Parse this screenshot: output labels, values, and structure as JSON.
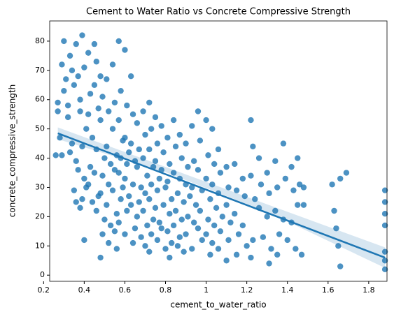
{
  "chart_data": {
    "type": "scatter",
    "title": "Cement to Water Ratio vs Concrete Compressive Strength",
    "x_label": "cement_to_water_ratio",
    "y_label": "concrete_compressive_strength",
    "xlim": [
      0.23,
      1.89
    ],
    "ylim": [
      -2.1,
      86.9
    ],
    "xticks": [
      0.2,
      0.4,
      0.6,
      0.8,
      1.0,
      1.2,
      1.4,
      1.6,
      1.8
    ],
    "yticks": [
      0,
      10,
      20,
      30,
      40,
      50,
      60,
      70,
      80
    ],
    "series": [
      {
        "name": "points",
        "color": "#1f77b4",
        "x": [
          0.27,
          0.28,
          0.26,
          0.27,
          0.3,
          0.29,
          0.31,
          0.3,
          0.32,
          0.29,
          0.33,
          0.34,
          0.32,
          0.33,
          0.34,
          0.35,
          0.36,
          0.37,
          0.35,
          0.38,
          0.36,
          0.37,
          0.36,
          0.38,
          0.39,
          0.4,
          0.38,
          0.41,
          0.39,
          0.4,
          0.41,
          0.39,
          0.4,
          0.42,
          0.43,
          0.42,
          0.44,
          0.43,
          0.42,
          0.44,
          0.45,
          0.46,
          0.45,
          0.47,
          0.46,
          0.45,
          0.47,
          0.46,
          0.48,
          0.49,
          0.48,
          0.5,
          0.49,
          0.48,
          0.5,
          0.49,
          0.48,
          0.51,
          0.52,
          0.51,
          0.53,
          0.52,
          0.51,
          0.53,
          0.52,
          0.54,
          0.55,
          0.54,
          0.56,
          0.55,
          0.54,
          0.56,
          0.55,
          0.57,
          0.58,
          0.57,
          0.59,
          0.58,
          0.57,
          0.59,
          0.58,
          0.57,
          0.56,
          0.6,
          0.61,
          0.6,
          0.62,
          0.61,
          0.6,
          0.62,
          0.61,
          0.6,
          0.63,
          0.64,
          0.63,
          0.65,
          0.64,
          0.63,
          0.65,
          0.64,
          0.66,
          0.67,
          0.66,
          0.68,
          0.67,
          0.66,
          0.68,
          0.69,
          0.7,
          0.69,
          0.71,
          0.7,
          0.69,
          0.71,
          0.7,
          0.72,
          0.73,
          0.72,
          0.74,
          0.73,
          0.72,
          0.74,
          0.73,
          0.72,
          0.75,
          0.76,
          0.75,
          0.77,
          0.76,
          0.75,
          0.77,
          0.76,
          0.78,
          0.79,
          0.78,
          0.8,
          0.79,
          0.78,
          0.8,
          0.81,
          0.82,
          0.81,
          0.83,
          0.82,
          0.81,
          0.83,
          0.82,
          0.84,
          0.85,
          0.84,
          0.86,
          0.85,
          0.84,
          0.86,
          0.87,
          0.88,
          0.87,
          0.89,
          0.88,
          0.87,
          0.89,
          0.9,
          0.91,
          0.9,
          0.92,
          0.91,
          0.9,
          0.93,
          0.94,
          0.93,
          0.95,
          0.94,
          0.93,
          0.96,
          0.97,
          0.96,
          0.98,
          0.97,
          0.96,
          0.98,
          1.0,
          1.01,
          1.0,
          1.02,
          1.01,
          1.0,
          1.02,
          1.03,
          1.04,
          1.03,
          1.05,
          1.04,
          1.03,
          1.06,
          1.07,
          1.06,
          1.08,
          1.07,
          1.06,
          1.1,
          1.11,
          1.1,
          1.12,
          1.11,
          1.1,
          1.14,
          1.15,
          1.14,
          1.16,
          1.15,
          1.18,
          1.19,
          1.18,
          1.2,
          1.22,
          1.23,
          1.22,
          1.24,
          1.23,
          1.22,
          1.26,
          1.27,
          1.26,
          1.28,
          1.3,
          1.31,
          1.3,
          1.32,
          1.31,
          1.34,
          1.35,
          1.34,
          1.36,
          1.35,
          1.38,
          1.39,
          1.38,
          1.4,
          1.42,
          1.43,
          1.42,
          1.44,
          1.45,
          1.46,
          1.45,
          1.47,
          1.48,
          1.48,
          1.62,
          1.63,
          1.64,
          1.66,
          1.65,
          1.66,
          1.69,
          1.88,
          1.88,
          1.88,
          1.88,
          1.88,
          1.88,
          1.88
        ],
        "values": [
          59,
          47,
          41,
          56,
          80,
          72,
          67,
          63,
          54,
          41,
          75,
          70,
          58,
          42,
          45,
          29,
          79,
          68,
          65,
          56,
          39,
          36,
          25,
          23,
          82,
          71,
          60,
          50,
          44,
          33,
          30,
          26,
          12,
          76,
          62,
          55,
          47,
          37,
          31,
          25,
          79,
          73,
          65,
          57,
          43,
          35,
          27,
          22,
          68,
          61,
          53,
          40,
          34,
          28,
          19,
          14,
          6,
          67,
          56,
          44,
          38,
          31,
          24,
          17,
          11,
          72,
          59,
          50,
          41,
          36,
          29,
          21,
          15,
          80,
          63,
          53,
          46,
          40,
          35,
          30,
          26,
          18,
          9,
          77,
          58,
          47,
          42,
          38,
          33,
          27,
          22,
          14,
          68,
          55,
          45,
          39,
          31,
          24,
          16,
          11,
          52,
          43,
          37,
          30,
          25,
          20,
          13,
          56,
          48,
          40,
          34,
          28,
          22,
          17,
          10,
          59,
          50,
          43,
          37,
          31,
          26,
          19,
          14,
          8,
          54,
          45,
          39,
          33,
          29,
          23,
          18,
          12,
          51,
          42,
          36,
          30,
          24,
          16,
          9,
          47,
          38,
          32,
          26,
          21,
          15,
          11,
          6,
          53,
          44,
          35,
          28,
          22,
          17,
          10,
          48,
          40,
          33,
          25,
          19,
          13,
          8,
          45,
          37,
          31,
          27,
          20,
          14,
          51,
          39,
          30,
          24,
          18,
          9,
          56,
          46,
          36,
          29,
          22,
          16,
          12,
          53,
          41,
          33,
          26,
          19,
          14,
          7,
          50,
          38,
          31,
          23,
          17,
          11,
          43,
          35,
          28,
          20,
          15,
          9,
          37,
          30,
          24,
          18,
          12,
          5,
          38,
          29,
          21,
          14,
          7,
          33,
          27,
          17,
          10,
          53,
          44,
          34,
          26,
          12,
          6,
          40,
          31,
          23,
          13,
          35,
          28,
          20,
          9,
          4,
          39,
          30,
          22,
          14,
          7,
          45,
          33,
          19,
          12,
          37,
          29,
          18,
          9,
          40,
          31,
          24,
          7,
          30,
          24,
          31,
          22,
          16,
          33,
          10,
          3,
          35,
          29,
          25,
          21,
          17,
          8,
          5,
          2
        ]
      }
    ],
    "regression": {
      "x": [
        0.27,
        1.88
      ],
      "values": [
        48.5,
        6
      ]
    },
    "confidence_band": {
      "x": [
        0.27,
        0.8,
        1.3,
        1.88
      ],
      "lower": [
        46.5,
        35.2,
        21.6,
        2.5
      ],
      "upper": [
        50.5,
        37.0,
        24.2,
        9.5
      ]
    }
  }
}
